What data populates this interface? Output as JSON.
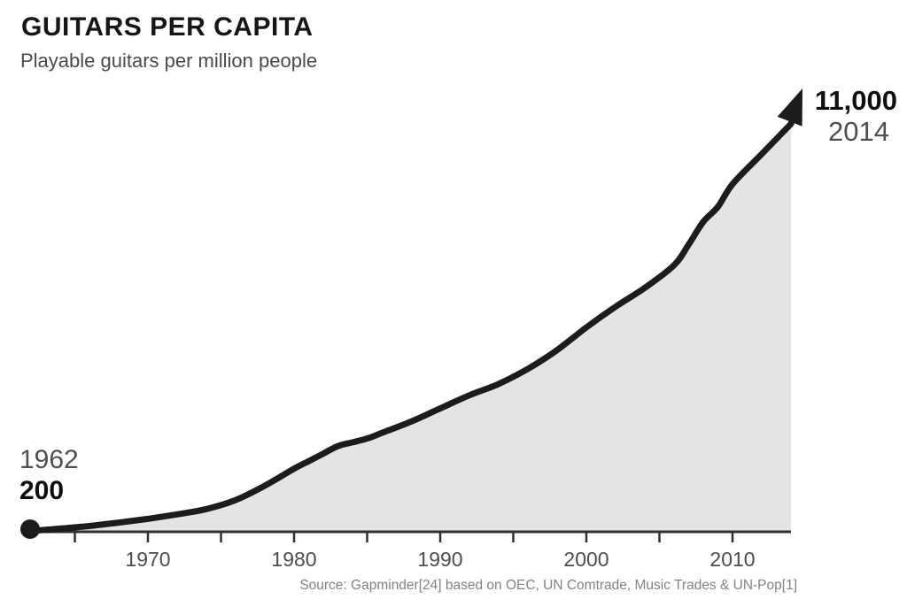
{
  "colors": {
    "line": "#1c1c1c",
    "area_fill": "#e4e4e4",
    "axis": "#303030",
    "title_text": "#161616",
    "muted_text": "#4d4d4d",
    "source_text": "#828282",
    "background": "#ffffff"
  },
  "chart_data": {
    "type": "area",
    "title": "GUITARS PER CAPITA",
    "subtitle": "Playable guitars per million people",
    "grid": false,
    "legend": "none",
    "x_range": [
      1962,
      2014
    ],
    "y_domain": [
      200,
      11000
    ],
    "series": [
      {
        "name": "Playable guitars per million people",
        "x": [
          1962,
          1964,
          1966,
          1968,
          1970,
          1972,
          1974,
          1976,
          1978,
          1980,
          1981,
          1982,
          1983,
          1984,
          1985,
          1986,
          1988,
          1990,
          1992,
          1994,
          1996,
          1998,
          2000,
          2002,
          2004,
          2006,
          2007,
          2008,
          2009,
          2010,
          2012,
          2014
        ],
        "values": [
          200,
          260,
          330,
          420,
          520,
          640,
          780,
          1020,
          1400,
          1850,
          2050,
          2250,
          2450,
          2550,
          2650,
          2800,
          3100,
          3450,
          3800,
          4100,
          4500,
          5000,
          5600,
          6150,
          6650,
          7250,
          7800,
          8400,
          8800,
          9400,
          10200,
          11000
        ]
      }
    ],
    "axis": {
      "minor_tick_years": [
        1965,
        1970,
        1975,
        1980,
        1985,
        1990,
        1995,
        2000,
        2005,
        2010
      ],
      "labeled_ticks": [
        {
          "year": 1970,
          "label": "1970"
        },
        {
          "year": 1980,
          "label": "1980"
        },
        {
          "year": 1990,
          "label": "1990"
        },
        {
          "year": 2000,
          "label": "2000"
        },
        {
          "year": 2010,
          "label": "2010"
        }
      ]
    },
    "annotations": {
      "start": {
        "year": "1962",
        "value": "200"
      },
      "end": {
        "year": "2014",
        "value": "11,000"
      }
    },
    "source": "Source: Gapminder[24] based on OEC, UN Comtrade, Music Trades & UN-Pop[1]"
  }
}
